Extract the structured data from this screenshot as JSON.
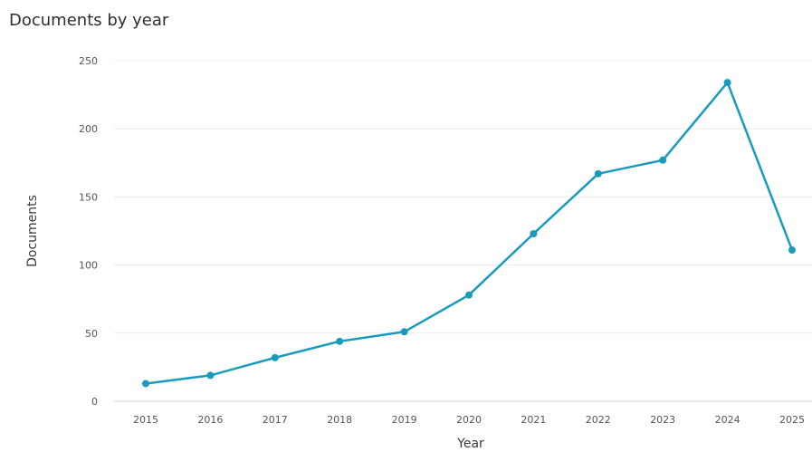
{
  "chart_data": {
    "type": "line",
    "title": "Documents by year",
    "xlabel": "Year",
    "ylabel": "Documents",
    "x": [
      "2015",
      "2016",
      "2017",
      "2018",
      "2019",
      "2020",
      "2021",
      "2022",
      "2023",
      "2024",
      "2025"
    ],
    "series": [
      {
        "values": [
          13,
          19,
          32,
          44,
          51,
          78,
          123,
          167,
          177,
          234,
          111
        ]
      }
    ],
    "y_ticks": [
      "0",
      "50",
      "100",
      "150",
      "200",
      "250"
    ],
    "ylim": [
      0,
      250
    ],
    "grid": "horizontal",
    "legend": "none",
    "colors": {
      "line": "#1a9bbd",
      "grid": "#ececec",
      "text": "#2e2e2e"
    }
  }
}
